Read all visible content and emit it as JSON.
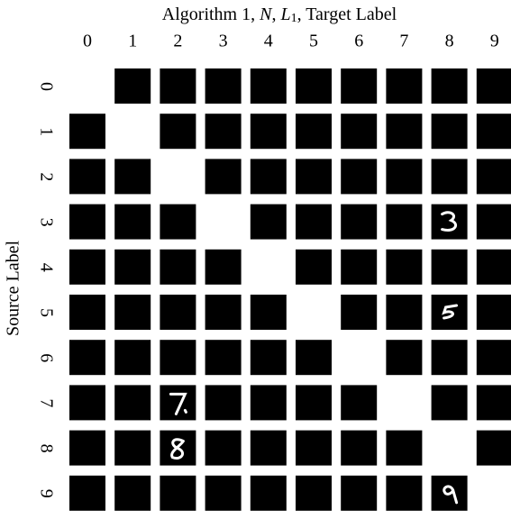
{
  "figure": {
    "title_parts": [
      "Algorithm 1, ",
      "N",
      ", ",
      "L",
      "1",
      ", Target Label"
    ],
    "column_labels": [
      "0",
      "1",
      "2",
      "3",
      "4",
      "5",
      "6",
      "7",
      "8",
      "9"
    ],
    "row_labels": [
      "0",
      "1",
      "2",
      "3",
      "4",
      "5",
      "6",
      "7",
      "8",
      "9"
    ],
    "row_axis_label": "Source Label"
  }
}
